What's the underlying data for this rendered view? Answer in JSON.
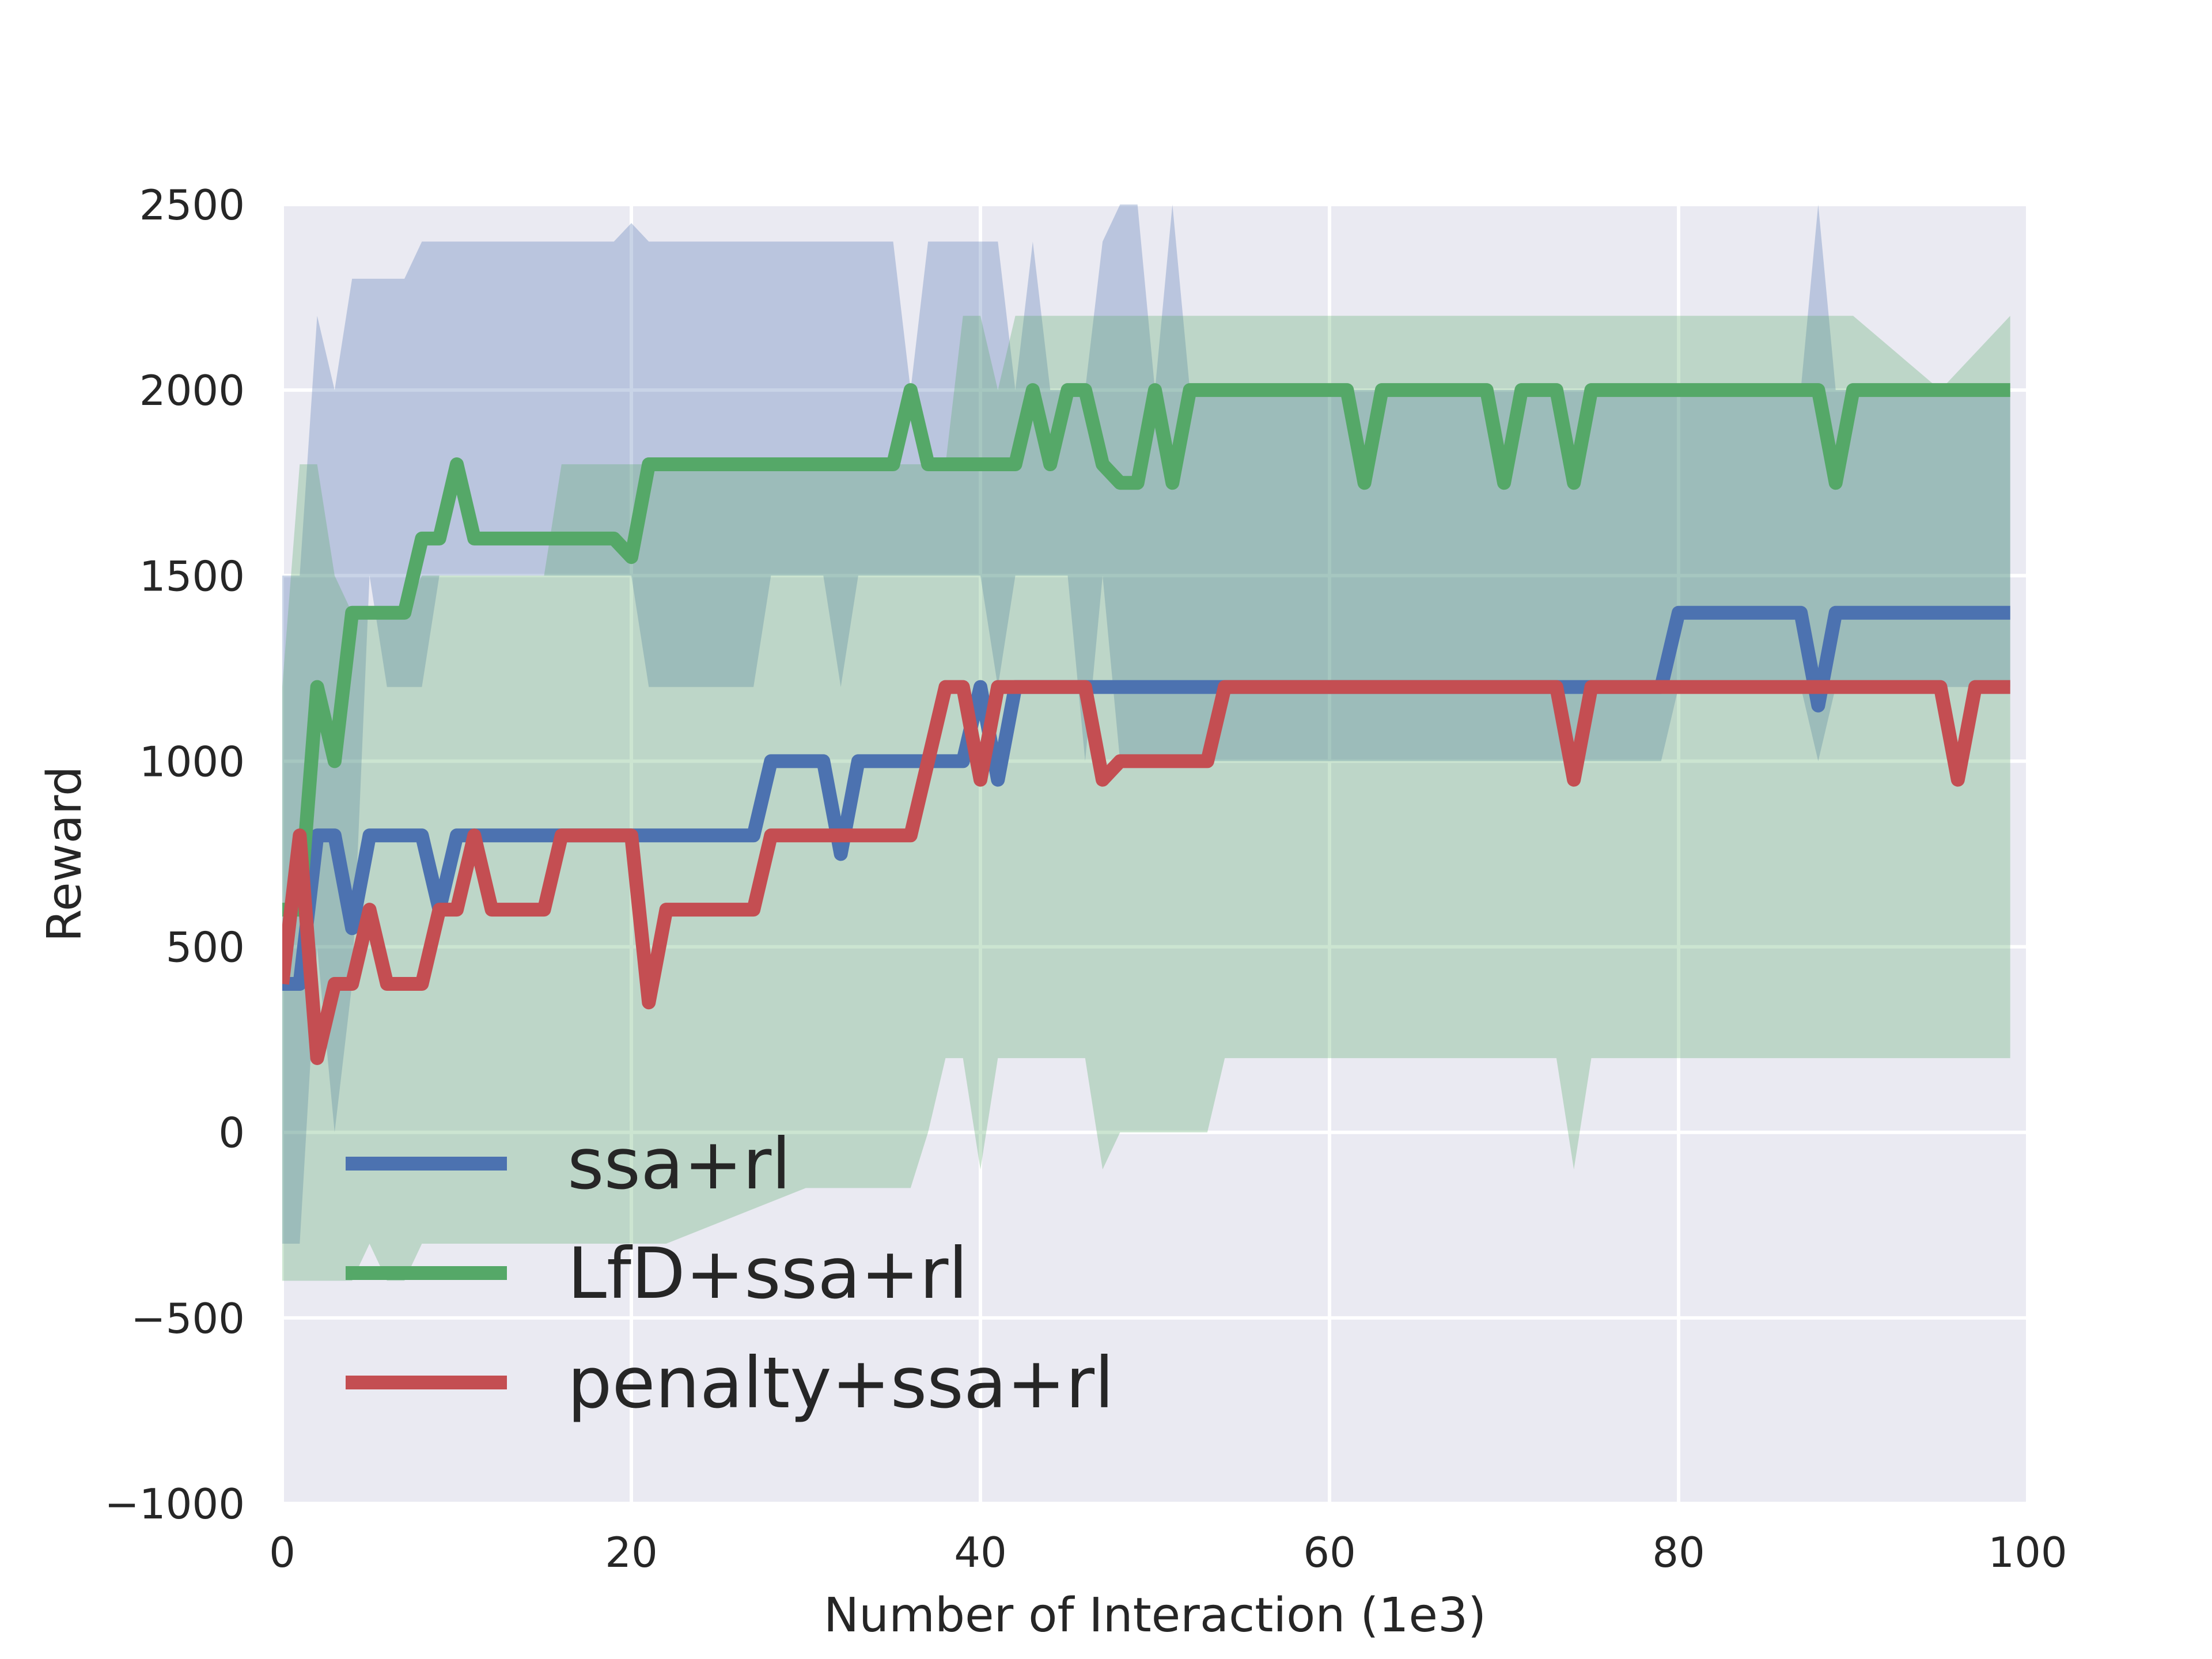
{
  "chart_data": {
    "type": "line",
    "title": "",
    "xlabel": "Number of Interaction (1e3)",
    "ylabel": "Reward",
    "xlim": [
      0,
      100
    ],
    "ylim": [
      -1000,
      2500
    ],
    "xticks": [
      0,
      20,
      40,
      60,
      80,
      100
    ],
    "yticks": [
      -1000,
      -500,
      0,
      500,
      1000,
      1500,
      2000,
      2500
    ],
    "ytick_labels": [
      "−1000",
      "−500",
      "0",
      "500",
      "1000",
      "1500",
      "2000",
      "2500"
    ],
    "grid": true,
    "background": "#eaeaf2",
    "legend": {
      "placement": "lower-left"
    },
    "series": [
      {
        "name": "ssa+rl",
        "color": "#4c72b0",
        "band_color": "#4c72b0",
        "x": [
          0,
          1,
          2,
          3,
          4,
          5,
          6,
          7,
          8,
          9,
          10,
          11,
          12,
          13,
          14,
          15,
          16,
          17,
          18,
          19,
          20,
          21,
          22,
          23,
          24,
          25,
          26,
          27,
          28,
          29,
          30,
          31,
          32,
          33,
          34,
          35,
          36,
          37,
          38,
          39,
          40,
          41,
          42,
          43,
          44,
          45,
          46,
          47,
          48,
          49,
          50,
          51,
          52,
          53,
          54,
          55,
          60,
          70,
          79,
          80,
          81,
          82,
          83,
          84,
          85,
          86,
          87,
          88,
          89,
          90,
          91,
          95,
          99
        ],
        "y": [
          400,
          400,
          800,
          800,
          550,
          800,
          800,
          800,
          800,
          600,
          800,
          800,
          800,
          800,
          800,
          800,
          800,
          800,
          800,
          800,
          800,
          800,
          800,
          800,
          800,
          800,
          800,
          800,
          1000,
          1000,
          1000,
          1000,
          750,
          1000,
          1000,
          1000,
          1000,
          1000,
          1000,
          1000,
          1200,
          950,
          1200,
          1200,
          1200,
          1200,
          1200,
          1200,
          1200,
          1200,
          1200,
          1200,
          1200,
          1200,
          1200,
          1200,
          1200,
          1200,
          1200,
          1400,
          1400,
          1400,
          1400,
          1400,
          1400,
          1400,
          1400,
          1150,
          1400,
          1400,
          1400,
          1400,
          1400
        ],
        "upper": [
          1500,
          1500,
          2200,
          2000,
          2300,
          2300,
          2300,
          2300,
          2400,
          2400,
          2400,
          2400,
          2400,
          2400,
          2400,
          2400,
          2400,
          2400,
          2400,
          2400,
          2450,
          2400,
          2400,
          2400,
          2400,
          2400,
          2400,
          2400,
          2400,
          2400,
          2400,
          2400,
          2400,
          2400,
          2400,
          2400,
          2000,
          2400,
          2400,
          2400,
          2400,
          2400,
          2000,
          2400,
          2000,
          2000,
          2000,
          2400,
          2500,
          2500,
          2000,
          2500,
          2000,
          2000,
          2000,
          2000,
          2000,
          2000,
          2000,
          2000,
          2000,
          2000,
          2000,
          2000,
          2000,
          2000,
          2000,
          2500,
          2000,
          2000,
          2000,
          2000,
          2000
        ],
        "lower": [
          -300,
          -300,
          500,
          0,
          400,
          1500,
          1200,
          1200,
          1200,
          1500,
          1500,
          1500,
          1500,
          1500,
          1500,
          1500,
          1500,
          1500,
          1500,
          1500,
          1500,
          1200,
          1200,
          1200,
          1200,
          1200,
          1200,
          1200,
          1500,
          1500,
          1500,
          1500,
          1200,
          1500,
          1500,
          1500,
          1500,
          1500,
          1500,
          1500,
          1500,
          1200,
          1500,
          1500,
          1500,
          1500,
          1000,
          1500,
          1000,
          1000,
          1000,
          1000,
          1000,
          1000,
          1000,
          1000,
          1000,
          1000,
          1000,
          1200,
          1200,
          1200,
          1200,
          1200,
          1200,
          1200,
          1200,
          1000,
          1200,
          1200,
          1200,
          1200,
          1200
        ]
      },
      {
        "name": "LfD+ssa+rl",
        "color": "#55a868",
        "band_color": "#55a868",
        "x": [
          0,
          1,
          2,
          3,
          4,
          5,
          6,
          7,
          8,
          9,
          10,
          11,
          12,
          13,
          14,
          15,
          16,
          17,
          18,
          19,
          20,
          21,
          22,
          30,
          35,
          36,
          37,
          38,
          39,
          40,
          41,
          42,
          43,
          44,
          45,
          46,
          47,
          48,
          49,
          50,
          51,
          52,
          53,
          54,
          60,
          61,
          62,
          63,
          64,
          69,
          70,
          71,
          72,
          73,
          74,
          75,
          76,
          87,
          88,
          89,
          90,
          95,
          99
        ],
        "y": [
          600,
          600,
          1200,
          1000,
          1400,
          1400,
          1400,
          1400,
          1600,
          1600,
          1800,
          1600,
          1600,
          1600,
          1600,
          1600,
          1600,
          1600,
          1600,
          1600,
          1550,
          1800,
          1800,
          1800,
          1800,
          2000,
          1800,
          1800,
          1800,
          1800,
          1800,
          1800,
          2000,
          1800,
          2000,
          2000,
          1800,
          1750,
          1750,
          2000,
          1750,
          2000,
          2000,
          2000,
          2000,
          2000,
          1750,
          2000,
          2000,
          2000,
          1750,
          2000,
          2000,
          2000,
          1750,
          2000,
          2000,
          2000,
          2000,
          1750,
          2000,
          2000,
          2000
        ],
        "upper": [
          1200,
          1800,
          1800,
          1500,
          1400,
          1400,
          1400,
          1400,
          1500,
          1500,
          1500,
          1500,
          1500,
          1500,
          1500,
          1500,
          1800,
          1800,
          1800,
          1800,
          1800,
          1800,
          1800,
          1800,
          1800,
          1800,
          1800,
          1800,
          2200,
          2200,
          2000,
          2200,
          2200,
          2200,
          2200,
          2200,
          2200,
          2200,
          2200,
          2200,
          2200,
          2200,
          2200,
          2200,
          2200,
          2200,
          2200,
          2200,
          2200,
          2200,
          2200,
          2200,
          2200,
          2200,
          2200,
          2200,
          2200,
          2200,
          2200,
          2200,
          2200,
          2000,
          2200
        ],
        "lower": [
          -400,
          -400,
          -400,
          -400,
          -400,
          -300,
          -400,
          -400,
          -300,
          -300,
          -300,
          -300,
          -300,
          -300,
          -300,
          -300,
          -300,
          -300,
          -300,
          -300,
          -300,
          -300,
          -300,
          -150,
          -150,
          -150,
          0,
          200,
          200,
          -100,
          200,
          200,
          200,
          200,
          200,
          200,
          -100,
          0,
          0,
          0,
          0,
          0,
          0,
          200,
          200,
          200,
          200,
          200,
          200,
          200,
          200,
          200,
          200,
          200,
          -100,
          200,
          200,
          200,
          200,
          200,
          200,
          200,
          200
        ]
      },
      {
        "name": "penalty+ssa+rl",
        "color": "#c44e52",
        "band_color": "#c44e52",
        "x": [
          0,
          1,
          2,
          3,
          4,
          5,
          6,
          7,
          8,
          9,
          10,
          11,
          12,
          13,
          14,
          15,
          16,
          17,
          18,
          19,
          20,
          21,
          22,
          27,
          28,
          29,
          35,
          36,
          37,
          38,
          39,
          40,
          41,
          42,
          45,
          46,
          47,
          48,
          49,
          50,
          51,
          52,
          53,
          54,
          73,
          74,
          75,
          95,
          96,
          97,
          99
        ],
        "y": [
          400,
          800,
          200,
          400,
          400,
          600,
          400,
          400,
          400,
          600,
          600,
          800,
          600,
          600,
          600,
          600,
          800,
          800,
          800,
          800,
          800,
          350,
          600,
          600,
          800,
          800,
          800,
          800,
          1000,
          1200,
          1200,
          950,
          1200,
          1200,
          1200,
          1200,
          950,
          1000,
          1000,
          1000,
          1000,
          1000,
          1000,
          1200,
          1200,
          950,
          1200,
          1200,
          950,
          1200,
          1200
        ],
        "upper": [],
        "lower": []
      }
    ]
  }
}
